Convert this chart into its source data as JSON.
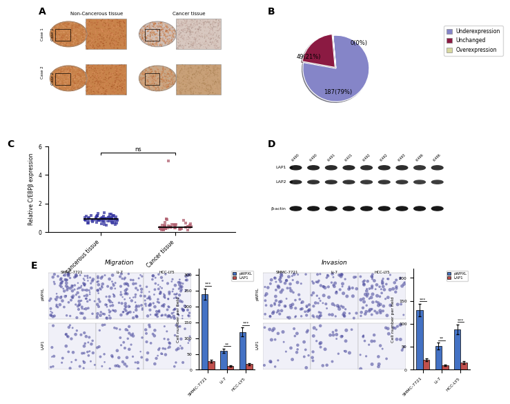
{
  "pie_values": [
    187,
    49,
    0.001
  ],
  "pie_labels": [
    "187(79%)",
    "49(21%)",
    "0(0%)"
  ],
  "pie_colors": [
    "#8585c8",
    "#8b1a42",
    "#d8d8a0"
  ],
  "pie_legend_labels": [
    "Underexpression",
    "Unchanged",
    "Overexpression"
  ],
  "pie_legend_colors": [
    "#8585c8",
    "#8b1a42",
    "#d8d8a0"
  ],
  "scatter_ylabel": "Relative C/EBPβ expression",
  "scatter_xlabel1": "Non-cancerous tissue",
  "scatter_xlabel2": "Cancer tissue",
  "scatter_ylim": [
    0,
    6
  ],
  "scatter_yticks": [
    0,
    2,
    4,
    6
  ],
  "scatter_color1": "#3535a0",
  "scatter_color2": "#b06070",
  "bar_migration_pWPXL": [
    240,
    60,
    120
  ],
  "bar_migration_LAP1": [
    28,
    12,
    18
  ],
  "bar_invasion_pWPXL": [
    130,
    52,
    88
  ],
  "bar_invasion_LAP1": [
    22,
    10,
    16
  ],
  "bar_migration_err_pWPXL": [
    18,
    7,
    14
  ],
  "bar_migration_err_LAP1": [
    4,
    2,
    3
  ],
  "bar_invasion_err_pWPXL": [
    14,
    7,
    11
  ],
  "bar_invasion_err_LAP1": [
    3,
    2,
    3
  ],
  "bar_categories": [
    "SMMC-7721",
    "Li-7",
    "HCC-LY5"
  ],
  "bar_ylabel": "Cell number per field",
  "bar_color_pWPXL": "#4472c4",
  "bar_color_LAP1": "#c0504d",
  "migration_ylim": [
    0,
    320
  ],
  "invasion_ylim": [
    0,
    220
  ],
  "migration_yticks": [
    0,
    50,
    100,
    150,
    200,
    250,
    300
  ],
  "invasion_yticks": [
    0,
    50,
    100,
    150,
    200
  ],
  "migration_sig": [
    "***",
    "**",
    "***"
  ],
  "invasion_sig": [
    "***",
    "**",
    "***"
  ],
  "wb_lane_labels": [
    "K-490",
    "K-490",
    "K-491",
    "K-401",
    "K-492",
    "K-492",
    "K-493",
    "K-496",
    "K-496"
  ],
  "non_cancerous_color1": "#c8955a",
  "non_cancerous_color2": "#d4a060",
  "cancer_color1": "#d8c0b0",
  "cancer_color2": "#c8a888"
}
